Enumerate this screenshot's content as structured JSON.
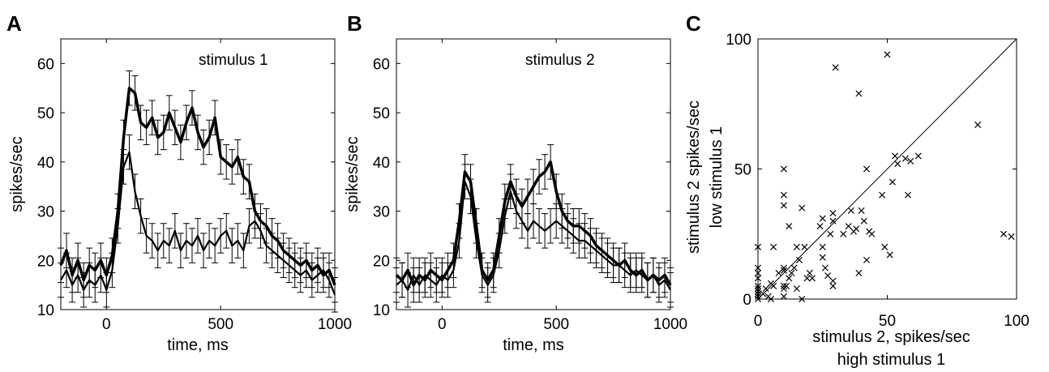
{
  "chart_data": [
    {
      "panel": "A",
      "type": "line",
      "annotation": "stimulus 1",
      "xlabel": "time, ms",
      "ylabel": "spikes/sec",
      "xlim": [
        -200,
        1000
      ],
      "ylim": [
        10,
        65
      ],
      "xticks": [
        0,
        500,
        1000
      ],
      "xtick_labels": [
        "0",
        "500",
        "1000"
      ],
      "yticks": [
        10,
        20,
        30,
        40,
        50,
        60
      ],
      "ytick_labels": [
        "10",
        "20",
        "30",
        "40",
        "50",
        "60"
      ],
      "error_bars": true,
      "error_half": 3.5,
      "grid": false,
      "x": [
        -200,
        -175,
        -150,
        -125,
        -100,
        -75,
        -50,
        -25,
        0,
        25,
        50,
        75,
        100,
        125,
        150,
        175,
        200,
        225,
        250,
        275,
        300,
        325,
        350,
        375,
        400,
        425,
        450,
        475,
        500,
        525,
        550,
        575,
        600,
        625,
        650,
        675,
        700,
        725,
        750,
        775,
        800,
        825,
        850,
        875,
        900,
        925,
        950,
        975,
        1000
      ],
      "series": [
        {
          "values": [
            19,
            22,
            17,
            20,
            16,
            19,
            18,
            20,
            17,
            21,
            30,
            45,
            55,
            54,
            48,
            47,
            49,
            45,
            46,
            50,
            47,
            44,
            48,
            51,
            46,
            43,
            45,
            49,
            41,
            40,
            39,
            41,
            37,
            36,
            30,
            28,
            27,
            25,
            24,
            22,
            21,
            20,
            19,
            20,
            18,
            19,
            17,
            18,
            15
          ]
        },
        {
          "values": [
            16,
            18,
            15,
            17,
            14,
            16,
            15,
            17,
            14,
            18,
            27,
            39,
            42,
            34,
            29,
            25,
            24,
            22,
            24,
            23,
            26,
            22,
            24,
            23,
            25,
            22,
            24,
            23,
            25,
            26,
            23,
            24,
            22,
            27,
            28,
            26,
            23,
            22,
            21,
            20,
            19,
            18,
            17,
            18,
            16,
            17,
            18,
            16,
            13
          ]
        }
      ]
    },
    {
      "panel": "B",
      "type": "line",
      "annotation": "stimulus 2",
      "xlabel": "time, ms",
      "ylabel": "spikes/sec",
      "xlim": [
        -200,
        1000
      ],
      "ylim": [
        10,
        65
      ],
      "xticks": [
        0,
        500,
        1000
      ],
      "xtick_labels": [
        "0",
        "500",
        "1000"
      ],
      "yticks": [
        10,
        20,
        30,
        40,
        50,
        60
      ],
      "ytick_labels": [
        "10",
        "20",
        "30",
        "40",
        "50",
        "60"
      ],
      "error_bars": true,
      "error_half": 3.5,
      "grid": false,
      "x": [
        -200,
        -175,
        -150,
        -125,
        -100,
        -75,
        -50,
        -25,
        0,
        25,
        50,
        75,
        100,
        125,
        150,
        175,
        200,
        225,
        250,
        275,
        300,
        325,
        350,
        375,
        400,
        425,
        450,
        475,
        500,
        525,
        550,
        575,
        600,
        625,
        650,
        675,
        700,
        725,
        750,
        775,
        800,
        825,
        850,
        875,
        900,
        925,
        950,
        975,
        1000
      ],
      "series": [
        {
          "values": [
            17,
            16,
            18,
            15,
            17,
            16,
            18,
            17,
            16,
            18,
            20,
            28,
            38,
            36,
            27,
            18,
            16,
            18,
            25,
            32,
            36,
            33,
            31,
            33,
            35,
            37,
            38,
            40,
            34,
            30,
            28,
            27,
            27,
            26,
            25,
            23,
            22,
            21,
            20,
            19,
            20,
            18,
            17,
            18,
            16,
            17,
            16,
            17,
            15
          ]
        },
        {
          "values": [
            15,
            16,
            14,
            17,
            15,
            17,
            16,
            15,
            17,
            16,
            18,
            24,
            36,
            33,
            24,
            17,
            15,
            17,
            22,
            29,
            34,
            30,
            28,
            26,
            28,
            27,
            26,
            27,
            28,
            27,
            26,
            25,
            24,
            24,
            23,
            22,
            21,
            20,
            19,
            19,
            18,
            17,
            18,
            17,
            16,
            17,
            15,
            16,
            14
          ]
        }
      ]
    },
    {
      "panel": "C",
      "type": "scatter",
      "marker": "x",
      "xlabel": "stimulus 2, spikes/sec",
      "xlabel2": "high stimulus 1",
      "ylabel": "stimulus 2 spikes/sec",
      "ylabel2": "low stimulus 1",
      "xlim": [
        0,
        100
      ],
      "ylim": [
        0,
        100
      ],
      "xticks": [
        0,
        50,
        100
      ],
      "xtick_labels": [
        "0",
        "50",
        "100"
      ],
      "yticks": [
        0,
        50,
        100
      ],
      "ytick_labels": [
        "0",
        "50",
        "100"
      ],
      "diagonal": true,
      "grid": false,
      "points": [
        [
          0,
          20
        ],
        [
          0,
          12
        ],
        [
          0,
          10
        ],
        [
          0,
          8
        ],
        [
          0,
          5
        ],
        [
          0,
          4
        ],
        [
          0,
          3
        ],
        [
          0,
          2
        ],
        [
          0,
          1
        ],
        [
          0,
          0
        ],
        [
          2,
          2
        ],
        [
          3,
          4
        ],
        [
          4,
          1
        ],
        [
          5,
          6
        ],
        [
          5,
          0
        ],
        [
          6,
          5
        ],
        [
          6,
          20
        ],
        [
          8,
          10
        ],
        [
          10,
          50
        ],
        [
          10,
          40
        ],
        [
          10,
          36
        ],
        [
          10,
          11
        ],
        [
          10,
          12
        ],
        [
          10,
          5
        ],
        [
          10,
          4
        ],
        [
          10,
          1
        ],
        [
          11,
          5
        ],
        [
          12,
          28
        ],
        [
          12,
          8
        ],
        [
          13,
          10
        ],
        [
          14,
          12
        ],
        [
          15,
          4
        ],
        [
          15,
          20
        ],
        [
          16,
          15
        ],
        [
          17,
          35
        ],
        [
          17,
          0
        ],
        [
          18,
          20
        ],
        [
          19,
          8
        ],
        [
          20,
          10
        ],
        [
          21,
          8
        ],
        [
          24,
          28
        ],
        [
          25,
          31
        ],
        [
          25,
          20
        ],
        [
          25,
          16
        ],
        [
          26,
          12
        ],
        [
          27,
          9
        ],
        [
          28,
          25
        ],
        [
          29,
          33
        ],
        [
          29,
          30
        ],
        [
          29,
          7
        ],
        [
          29,
          5
        ],
        [
          30,
          89
        ],
        [
          33,
          25
        ],
        [
          35,
          28
        ],
        [
          36,
          34
        ],
        [
          37,
          26
        ],
        [
          38,
          27
        ],
        [
          39,
          79
        ],
        [
          39,
          10
        ],
        [
          40,
          34
        ],
        [
          41,
          30
        ],
        [
          42,
          15
        ],
        [
          42,
          50
        ],
        [
          43,
          26
        ],
        [
          44,
          25
        ],
        [
          48,
          40
        ],
        [
          49,
          20
        ],
        [
          50,
          94
        ],
        [
          51,
          17
        ],
        [
          52,
          45
        ],
        [
          53,
          55
        ],
        [
          54,
          52
        ],
        [
          57,
          54
        ],
        [
          58,
          40
        ],
        [
          59,
          53
        ],
        [
          62,
          55
        ],
        [
          85,
          67
        ],
        [
          95,
          25
        ],
        [
          98,
          24
        ]
      ]
    }
  ],
  "panel_labels": {
    "a": "A",
    "b": "B",
    "c": "C"
  }
}
